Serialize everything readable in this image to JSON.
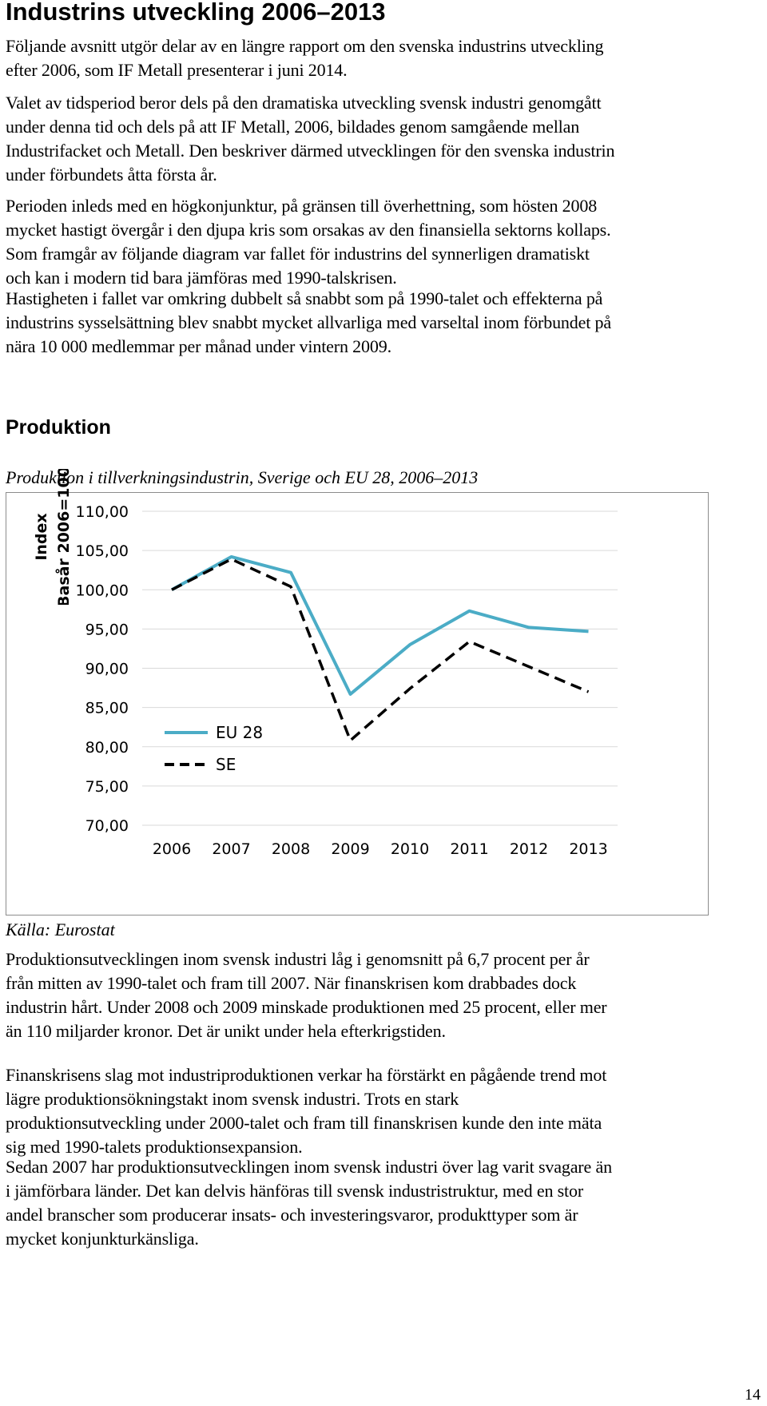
{
  "document": {
    "title": "Industrins utveckling 2006–2013",
    "intro_paragraphs": [
      [
        "Följande avsnitt utgör delar av en längre rapport om den svenska industrins utveckling",
        "efter 2006, som IF Metall presenterar i juni 2014."
      ],
      [
        "Valet av tidsperiod beror dels på den dramatiska utveckling svensk industri genomgått",
        "under denna tid och dels på att IF Metall, 2006, bildades genom samgående mellan",
        "Industrifacket och Metall. Den beskriver därmed utvecklingen för den svenska industrin",
        "under förbundets åtta första år."
      ],
      [
        "Perioden inleds med en högkonjunktur, på gränsen till överhettning, som hösten 2008",
        "mycket hastigt övergår i den djupa kris som orsakas av den finansiella sektorns kollaps.",
        "Som framgår av följande diagram var fallet för industrins del synnerligen dramatiskt",
        "och kan i modern tid bara jämföras med 1990-talskrisen."
      ],
      [
        "Hastigheten i fallet var omkring dubbelt så snabbt som på 1990-talet och effekterna på",
        "industrins sysselsättning blev snabbt mycket allvarliga med varseltal inom förbundet på",
        "nära 10 000 medlemmar per månad under vintern 2009."
      ]
    ],
    "section_heading": "Produktion",
    "figure_caption": "Produktion i tillverkningsindustrin, Sverige och EU 28, 2006–2013",
    "source": "Källa: Eurostat",
    "body_paragraphs": [
      [
        "Produktionsutvecklingen inom svensk industri låg i genomsnitt på 6,7 procent per år",
        "från mitten av 1990-talet och fram till 2007. När finanskrisen kom drabbades dock",
        "industrin hårt. Under 2008 och 2009 minskade produktionen med 25 procent, eller mer",
        "än 110 miljarder kronor. Det är unikt under hela efterkrigstiden."
      ],
      [
        "Finanskrisens slag mot industriproduktionen verkar ha förstärkt en pågående trend mot",
        "lägre produktionsökningstakt inom svensk industri. Trots en stark",
        "produktionsutveckling under 2000-talet och fram till finanskrisen kunde den inte mäta",
        "sig med 1990-talets produktionsexpansion."
      ],
      [
        "Sedan 2007 har produktionsutvecklingen inom svensk industri över lag varit svagare än",
        "i jämförbara länder. Det kan delvis hänföras till svensk industristruktur, med en stor",
        "andel branscher som producerar insats- och investeringsvaror, produkttyper som är",
        "mycket konjunkturkänsliga."
      ]
    ],
    "page_number": "14"
  },
  "chart_data": {
    "type": "line",
    "title": "",
    "ylabel_lines": [
      "Index",
      "Basår 2006=100"
    ],
    "xlabel": "",
    "x": [
      "2006",
      "2007",
      "2008",
      "2009",
      "2010",
      "2011",
      "2012",
      "2013"
    ],
    "y_ticks": [
      "70,00",
      "75,00",
      "80,00",
      "85,00",
      "90,00",
      "95,00",
      "100,00",
      "105,00",
      "110,00"
    ],
    "ylim": [
      70,
      110
    ],
    "grid": "horizontal",
    "legend_position": "bottom-left inside plot",
    "series": [
      {
        "name": "EU 28",
        "values": [
          100.0,
          104.2,
          102.2,
          86.7,
          93.0,
          97.3,
          95.2,
          94.7
        ],
        "color": "#4bacc6",
        "style": "solid"
      },
      {
        "name": "SE",
        "values": [
          100.0,
          103.9,
          100.4,
          80.8,
          87.4,
          93.4,
          90.2,
          87.0
        ],
        "color": "#000000",
        "style": "dashed"
      }
    ]
  }
}
